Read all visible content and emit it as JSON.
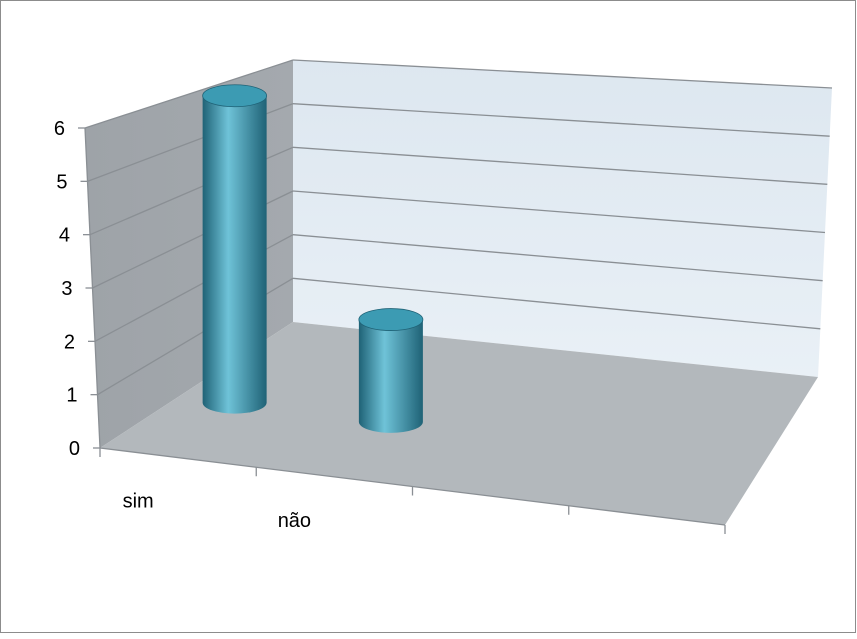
{
  "chart_data": {
    "type": "bar",
    "style": "3d-cylinder",
    "categories": [
      "sim",
      "não",
      "",
      ""
    ],
    "values": [
      6,
      2,
      null,
      null
    ],
    "ylim": [
      0,
      6
    ],
    "yticks": [
      "0",
      "1",
      "2",
      "3",
      "4",
      "5",
      "6"
    ],
    "grid": true,
    "legend": "none",
    "colors": {
      "bar": "#2f8ba3",
      "bar_light": "#6fc3d8",
      "bar_dark": "#1f6276",
      "bar_top": "#3c9bb3",
      "back_wall": "#e9f0f6",
      "side_wall": "#a4a9ae",
      "floor": "#b3b8bc",
      "gridline": "#8a8f94",
      "border": "#8c8c8c"
    }
  }
}
